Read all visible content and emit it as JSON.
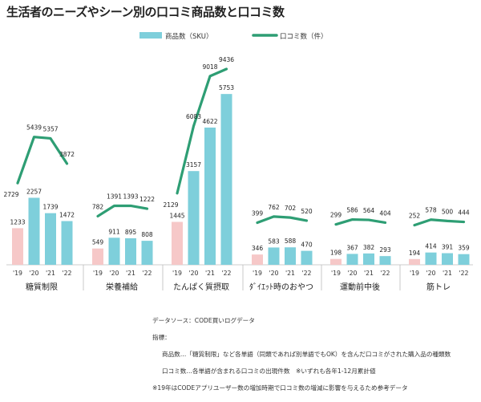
{
  "page_title": "生活者のニーズやシーン別の口コミ商品数と口コミ数",
  "notes": {
    "source": "データソース：CODE買いログデータ",
    "indicator_heading": "指標：",
    "line1": "商品数…「糖質制限」など各単語（同類であれば別単語でもOK）を含んだ口コミがされた購入品の種類数",
    "line2": "口コミ数…各単語が含まれる口コミの出現件数　※いずれも各年1-12月累計値",
    "line3": "※19年はCODEアプリユーザー数の増加時期で口コミ数の増減に影響を与えるため参考データ"
  },
  "chart_data": {
    "type": "bar",
    "legend_position": "top",
    "series": [
      {
        "name": "商品数（SKU）",
        "kind": "bar",
        "color": "#7ecfdb",
        "color_2019": "#f6c8c8"
      },
      {
        "name": "口コミ数（件）",
        "kind": "line",
        "color": "#2e9e74"
      }
    ],
    "groups": [
      {
        "name": "糖質制限",
        "years": [
          "'19",
          "'20",
          "'21",
          "'22"
        ],
        "sku": [
          1233,
          2257,
          1739,
          1472
        ],
        "reviews": [
          2729,
          5439,
          5357,
          3872
        ]
      },
      {
        "name": "栄養補給",
        "years": [
          "'19",
          "'20",
          "'21",
          "'22"
        ],
        "sku": [
          549,
          911,
          895,
          808
        ],
        "reviews": [
          782,
          1391,
          1393,
          1222
        ]
      },
      {
        "name": "たんぱく質摂取",
        "years": [
          "'19",
          "'20",
          "'21",
          "'22"
        ],
        "sku": [
          1445,
          3157,
          4622,
          5753
        ],
        "reviews": [
          2129,
          6083,
          9018,
          9436
        ]
      },
      {
        "name": "ﾀﾞｲｴｯﾄ時のおやつ",
        "years": [
          "'19",
          "'20",
          "'21",
          "'22"
        ],
        "sku": [
          346,
          583,
          588,
          470
        ],
        "reviews": [
          399,
          762,
          702,
          520
        ]
      },
      {
        "name": "運動前中後",
        "years": [
          "'19",
          "'20",
          "'21",
          "'22"
        ],
        "sku": [
          198,
          367,
          382,
          293
        ],
        "reviews": [
          299,
          586,
          564,
          404
        ]
      },
      {
        "name": "筋トレ",
        "years": [
          "'19",
          "'20",
          "'21",
          "'22"
        ],
        "sku": [
          194,
          414,
          391,
          359
        ],
        "reviews": [
          252,
          578,
          500,
          444
        ]
      }
    ]
  }
}
